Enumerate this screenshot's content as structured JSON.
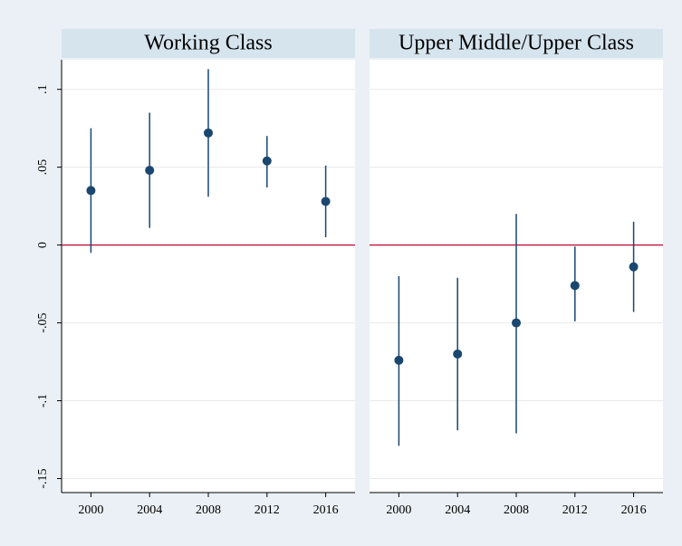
{
  "chart_data": [
    {
      "type": "scatter",
      "title": "Working Class",
      "x": [
        2000,
        2004,
        2008,
        2012,
        2016
      ],
      "values": [
        0.035,
        0.048,
        0.072,
        0.054,
        0.028
      ],
      "ci_low": [
        -0.005,
        0.011,
        0.031,
        0.037,
        0.005
      ],
      "ci_high": [
        0.075,
        0.085,
        0.113,
        0.07,
        0.051
      ],
      "color": "#1a476f",
      "yline": 0,
      "yline_color": "#c10534",
      "xlim": [
        1998,
        2018
      ],
      "xticks": [
        2000,
        2004,
        2008,
        2012,
        2016
      ],
      "ylim": [
        -0.159,
        0.119
      ],
      "yticks": [
        {
          "value": 0.1,
          "label": ".1"
        },
        {
          "value": 0.05,
          "label": ".05"
        },
        0,
        {
          "value": -0.05,
          "label": "-.05"
        },
        {
          "value": -0.1,
          "label": "-.1"
        },
        {
          "value": -0.15,
          "label": "-.15"
        }
      ],
      "grid": true
    },
    {
      "type": "scatter",
      "title": "Upper Middle/Upper Class",
      "x": [
        2000,
        2004,
        2008,
        2012,
        2016
      ],
      "values": [
        -0.074,
        -0.07,
        -0.05,
        -0.026,
        -0.014
      ],
      "ci_low": [
        -0.129,
        -0.119,
        -0.121,
        -0.049,
        -0.043
      ],
      "ci_high": [
        -0.02,
        -0.021,
        0.02,
        -0.001,
        0.015
      ],
      "color": "#1a476f",
      "yline": 0,
      "yline_color": "#c10534",
      "xlim": [
        1998,
        2018
      ],
      "xticks": [
        2000,
        2004,
        2008,
        2012,
        2016
      ],
      "ylim": [
        -0.159,
        0.119
      ],
      "grid": true
    }
  ]
}
